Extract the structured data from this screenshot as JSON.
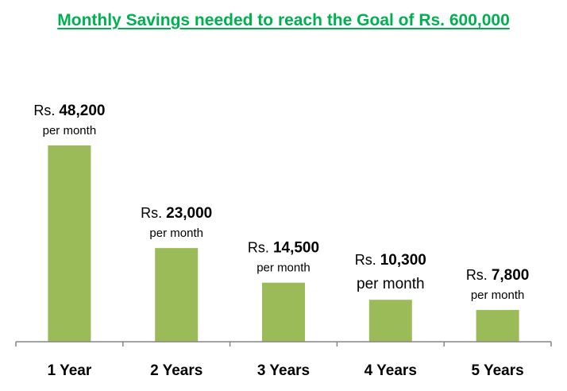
{
  "title": "Monthly Savings needed to reach the Goal of Rs. 600,000",
  "colors": {
    "title": "#00b050",
    "bar": "#9bbb59",
    "axis": "#868686",
    "text": "#000000"
  },
  "chart_data": {
    "type": "bar",
    "title": "Monthly Savings needed to reach the Goal of Rs. 600,000",
    "categories": [
      "1 Year",
      "2 Years",
      "3 Years",
      "4 Years",
      "5 Years"
    ],
    "values": [
      48200,
      23000,
      14500,
      10300,
      7800
    ],
    "data_labels": [
      {
        "prefix": "Rs. ",
        "value": "48,200",
        "unit": "per month"
      },
      {
        "prefix": "Rs. ",
        "value": "23,000",
        "unit": "per month"
      },
      {
        "prefix": "Rs. ",
        "value": "14,500",
        "unit": "per month"
      },
      {
        "prefix": "Rs. ",
        "value": "10,300",
        "unit": "per month"
      },
      {
        "prefix": "Rs. ",
        "value": "7,800",
        "unit": "per month"
      }
    ],
    "xlabel": "",
    "ylabel": "",
    "ylim": [
      0,
      55000
    ],
    "grid": false,
    "legend": "none"
  }
}
